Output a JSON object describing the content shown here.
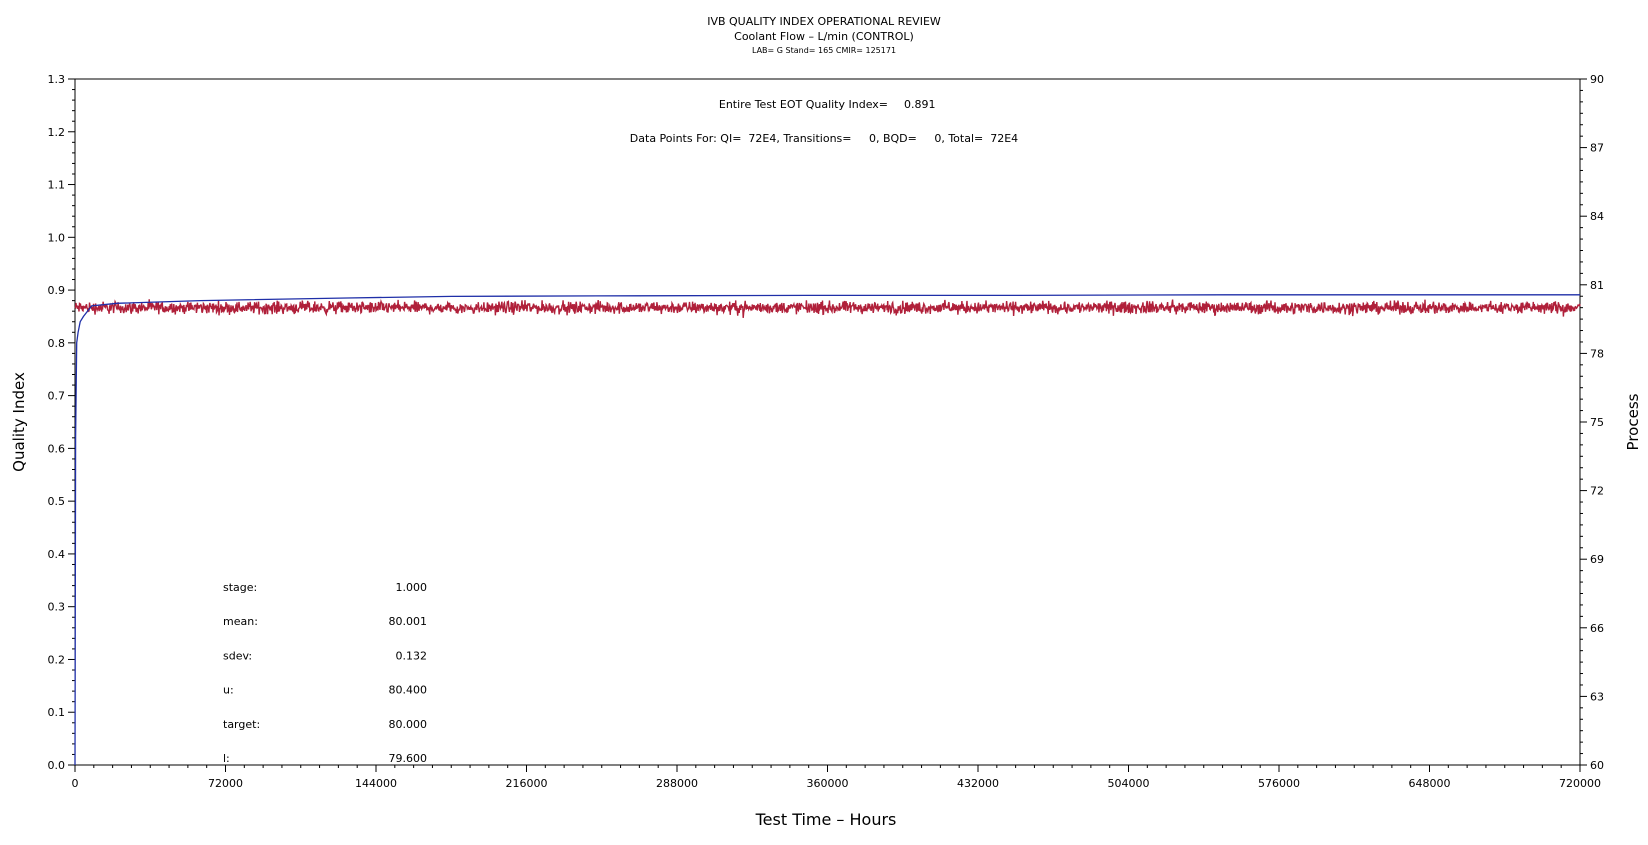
{
  "chart_data": {
    "type": "line",
    "title": "IVB QUALITY INDEX OPERATIONAL REVIEW",
    "subtitle": "Coolant Flow – L/min (CONTROL)",
    "subtitle2": "LAB= G Stand= 165 CMIR= 125171",
    "xlabel": "Test Time – Hours",
    "ylabel": "Quality Index",
    "y2label": "Process",
    "xlim": [
      0,
      720000
    ],
    "ylim": [
      0,
      1.3
    ],
    "y2lim": [
      60,
      90
    ],
    "x_ticks": [
      "0",
      "72000",
      "144000",
      "216000",
      "288000",
      "360000",
      "432000",
      "504000",
      "576000",
      "648000",
      "720000"
    ],
    "y_ticks": [
      "0.0",
      "0.1",
      "0.2",
      "0.3",
      "0.4",
      "0.5",
      "0.6",
      "0.7",
      "0.8",
      "0.9",
      "1.0",
      "1.1",
      "1.2",
      "1.3"
    ],
    "y2_ticks": [
      "60",
      "63",
      "66",
      "69",
      "72",
      "75",
      "78",
      "81",
      "84",
      "87",
      "90"
    ],
    "annotations": {
      "eot_label": "Entire Test EOT Quality Index=",
      "eot_value": "0.891",
      "points_text": "Data Points For: QI=  72E4, Transitions=     0, BQD=     0, Total=  72E4"
    },
    "stats": [
      {
        "label": "stage:",
        "value": "1.000"
      },
      {
        "label": "mean:",
        "value": "80.001"
      },
      {
        "label": "sdev:",
        "value": "0.132"
      },
      {
        "label": "u:",
        "value": "80.400"
      },
      {
        "label": "target:",
        "value": "80.000"
      },
      {
        "label": "l:",
        "value": "79.600"
      }
    ],
    "series": [
      {
        "axis": "left",
        "color": "#1f2fa8",
        "x": [
          0,
          300,
          800,
          1500,
          2500,
          4000,
          8000,
          20000,
          60000,
          130000,
          180000,
          250000,
          350000,
          450000,
          550000,
          650000,
          720000
        ],
        "y": [
          0.0,
          0.62,
          0.8,
          0.82,
          0.84,
          0.85,
          0.87,
          0.875,
          0.88,
          0.885,
          0.888,
          0.889,
          0.89,
          0.89,
          0.891,
          0.891,
          0.891
        ]
      },
      {
        "axis": "right",
        "color": "#b0203a",
        "x": [
          0,
          720000
        ],
        "mean": 80.001,
        "sdev": 0.132
      }
    ],
    "grid": false,
    "legend": "none"
  }
}
